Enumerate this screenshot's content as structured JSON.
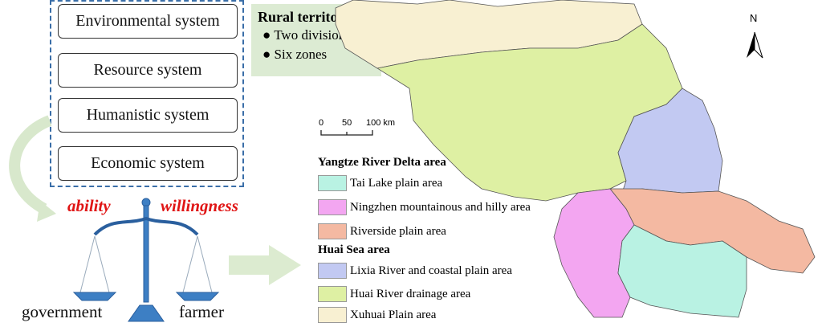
{
  "systems": [
    "Environmental system",
    "Resource  system",
    "Humanistic system",
    "Economic  system"
  ],
  "rural": {
    "title": "Rural territories",
    "items": [
      "Two divisions",
      "Six zones"
    ]
  },
  "balance": {
    "left_top": "ability",
    "right_top": "willingness",
    "left_bottom": "government",
    "right_bottom": "farmer"
  },
  "scale": {
    "labels": [
      "0",
      "50",
      "100 km"
    ]
  },
  "north": "N",
  "legend": {
    "groups": [
      {
        "title": "Yangtze River Delta area",
        "items": [
          {
            "label": "Tai Lake plain area",
            "color": "#b9f2e3"
          },
          {
            "label": "Ningzhen mountainous and hilly area",
            "color": "#f3a6f1"
          },
          {
            "label": "Riverside plain area",
            "color": "#f4b9a2"
          }
        ]
      },
      {
        "title": "Huai Sea area",
        "items": [
          {
            "label": "Lixia River and coastal plain area",
            "color": "#c2c9f2"
          },
          {
            "label": "Huai River drainage area",
            "color": "#def0a3"
          },
          {
            "label": "Xuhuai Plain area",
            "color": "#f8f0d2"
          }
        ]
      }
    ]
  }
}
